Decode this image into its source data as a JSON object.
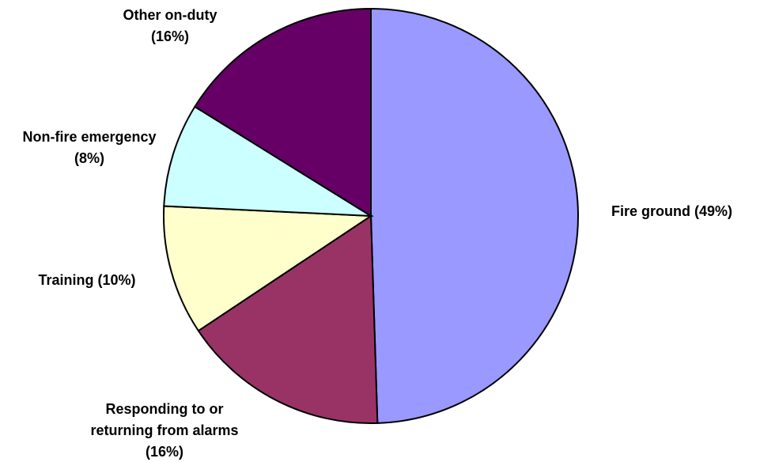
{
  "chart_data": {
    "type": "pie",
    "categories": [
      "Fire ground",
      "Responding to or returning from alarms",
      "Training",
      "Non-fire emergency",
      "Other on-duty"
    ],
    "values": [
      49,
      16,
      10,
      8,
      16
    ],
    "value_labels": [
      "(49%)",
      "(16%)",
      "(10%)",
      "(8%)",
      "(16%)"
    ],
    "colors": [
      "#9999ff",
      "#993366",
      "#ffffcc",
      "#ccffff",
      "#660066"
    ]
  }
}
